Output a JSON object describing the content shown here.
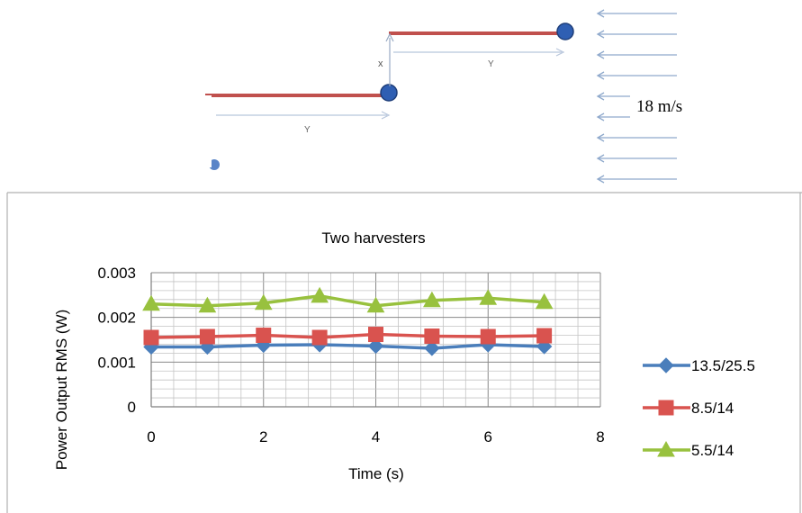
{
  "diagram": {
    "wind_speed_label": "18 m/s",
    "dimension_labels": {
      "x_spacing": "x",
      "y_spacing": "Y"
    }
  },
  "colors": {
    "series1": "#4a7ebb",
    "series2": "#d9534f",
    "series3": "#98c13e",
    "harvester_bar": "#c0504d",
    "harvester_node": "#2f5fb3",
    "arrow": "#8fa9cc"
  },
  "chart_data": {
    "type": "line",
    "title": "Two harvesters",
    "xlabel": "Time (s)",
    "ylabel": "Power Output RMS (W)",
    "x": [
      0,
      1,
      2,
      3,
      4,
      5,
      6,
      7
    ],
    "xlim": [
      0,
      8
    ],
    "ylim": [
      0,
      0.003
    ],
    "x_ticks": [
      "0",
      "2",
      "4",
      "6",
      "8"
    ],
    "y_ticks": [
      "0",
      "0.001",
      "0.002",
      "0.003"
    ],
    "grid": "major and minor",
    "legend_position": "right",
    "series": [
      {
        "name": "13.5/25.5",
        "marker": "diamond",
        "values": [
          0.00134,
          0.00134,
          0.00138,
          0.00139,
          0.00136,
          0.00131,
          0.00139,
          0.00135
        ]
      },
      {
        "name": "8.5/14",
        "marker": "square",
        "values": [
          0.00155,
          0.00157,
          0.0016,
          0.00155,
          0.00162,
          0.00158,
          0.00157,
          0.00159
        ]
      },
      {
        "name": "5.5/14",
        "marker": "triangle",
        "values": [
          0.0023,
          0.00226,
          0.00232,
          0.00248,
          0.00226,
          0.00238,
          0.00243,
          0.00234
        ]
      }
    ]
  }
}
